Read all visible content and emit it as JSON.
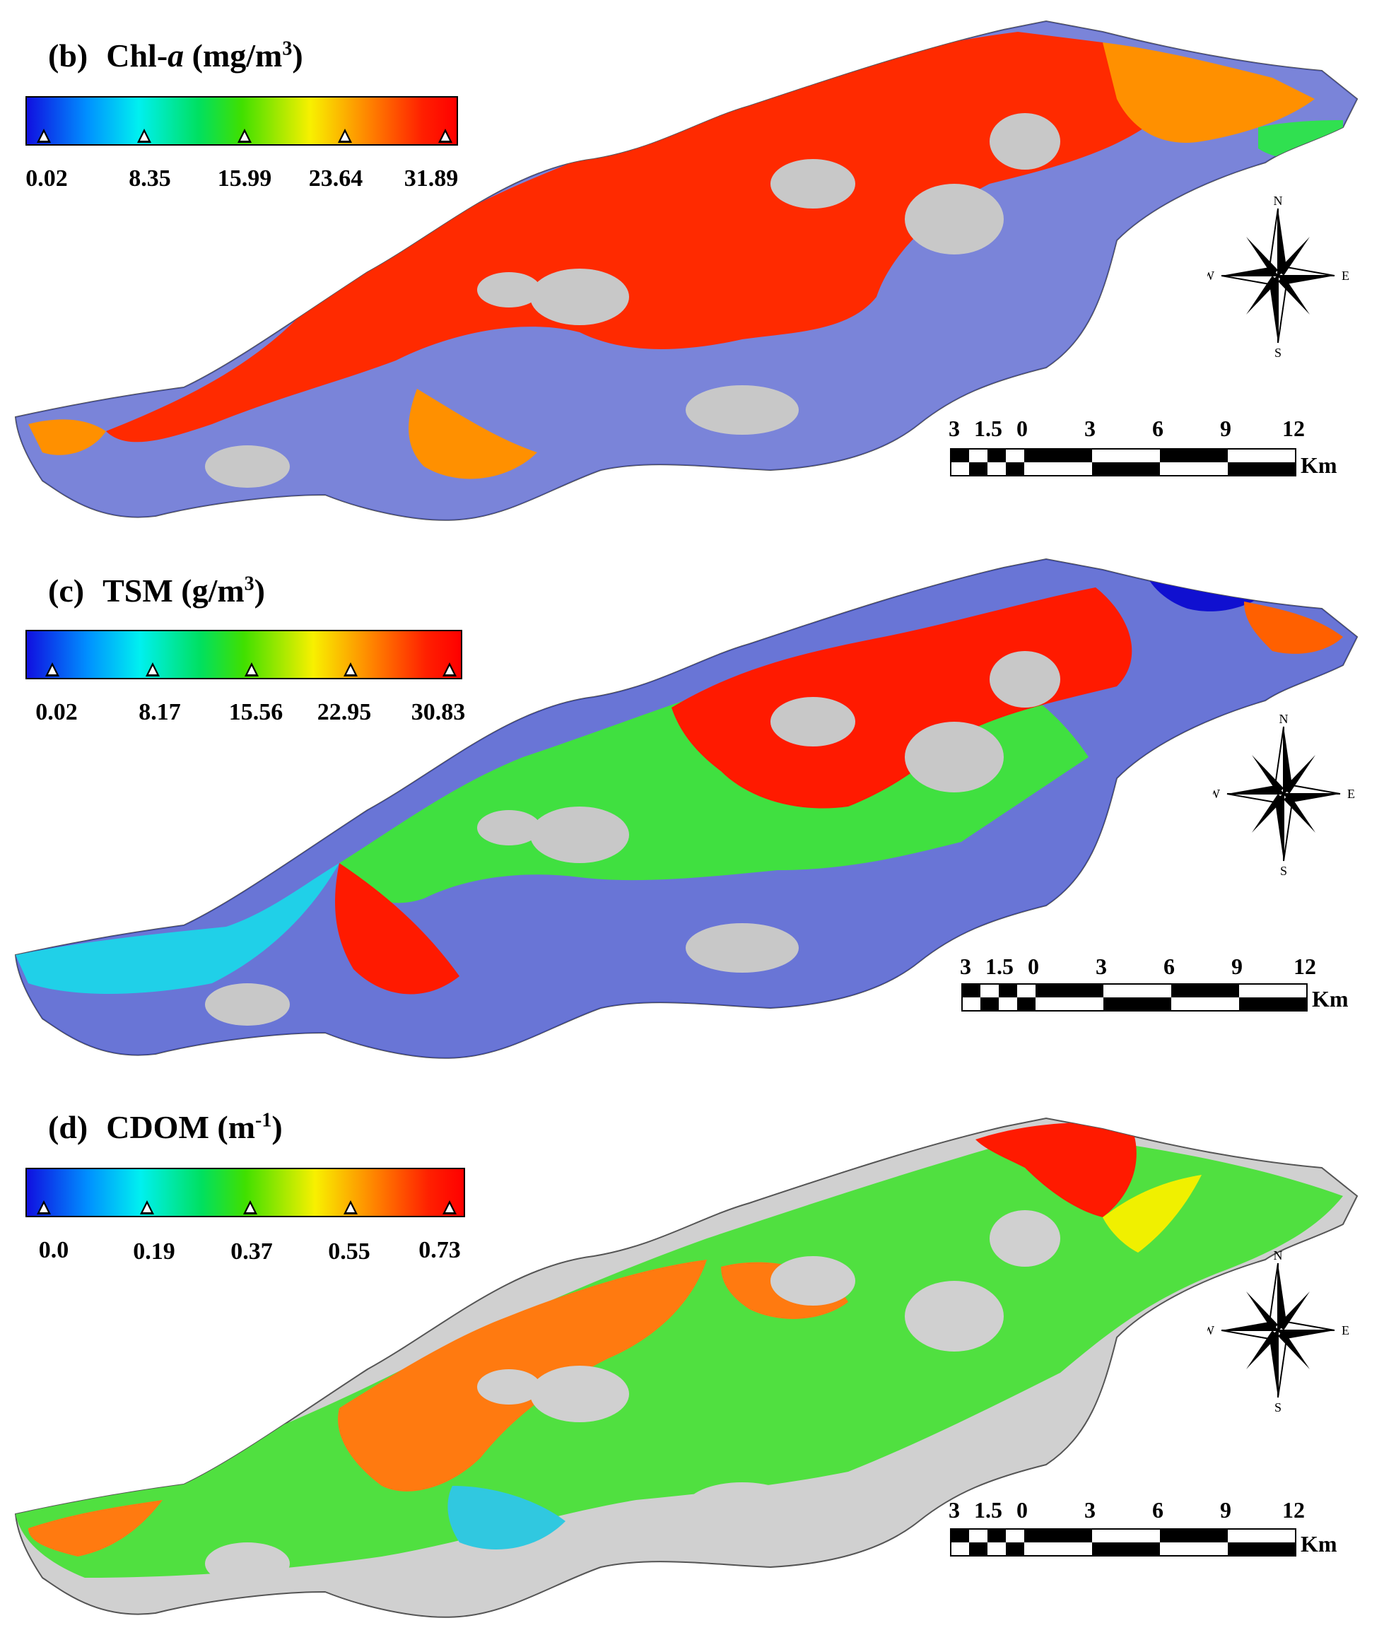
{
  "panels": [
    {
      "id": "b",
      "tag": "(b)",
      "variable": "Chl-",
      "variable_italic": "a",
      "unit_open": "(mg/m",
      "unit_sup": "3",
      "unit_close": ")",
      "colorbar_labels": [
        "0.02",
        "8.35",
        "15.99",
        "23.64",
        "31.89"
      ],
      "scale_labels": [
        "3",
        "1.5",
        "0",
        "3",
        "6",
        "9",
        "12"
      ],
      "scale_unit": "Km",
      "compass": {
        "n": "N",
        "s": "S",
        "e": "E",
        "w": "W"
      }
    },
    {
      "id": "c",
      "tag": "(c)",
      "variable": "TSM",
      "variable_italic": "",
      "unit_open": "(g/m",
      "unit_sup": "3",
      "unit_close": ")",
      "colorbar_labels": [
        "0.02",
        "8.17",
        "15.56",
        "22.95",
        "30.83"
      ],
      "scale_labels": [
        "3",
        "1.5",
        "0",
        "3",
        "6",
        "9",
        "12"
      ],
      "scale_unit": "Km",
      "compass": {
        "n": "N",
        "s": "S",
        "e": "E",
        "w": "W"
      }
    },
    {
      "id": "d",
      "tag": "(d)",
      "variable": "CDOM",
      "variable_italic": "",
      "unit_open": "(m",
      "unit_sup": "-1",
      "unit_close": ")",
      "colorbar_labels": [
        "0.0",
        "0.19",
        "0.37",
        "0.55",
        "0.73"
      ],
      "scale_labels": [
        "3",
        "1.5",
        "0",
        "3",
        "6",
        "9",
        "12"
      ],
      "scale_unit": "Km",
      "compass": {
        "n": "N",
        "s": "S",
        "e": "E",
        "w": "W"
      }
    }
  ],
  "colors": {
    "land": "#c8c8c8",
    "low": "#1a2ee0",
    "mid": "#20e040",
    "high": "#ff1a00",
    "mid_high": "#ff9000"
  }
}
